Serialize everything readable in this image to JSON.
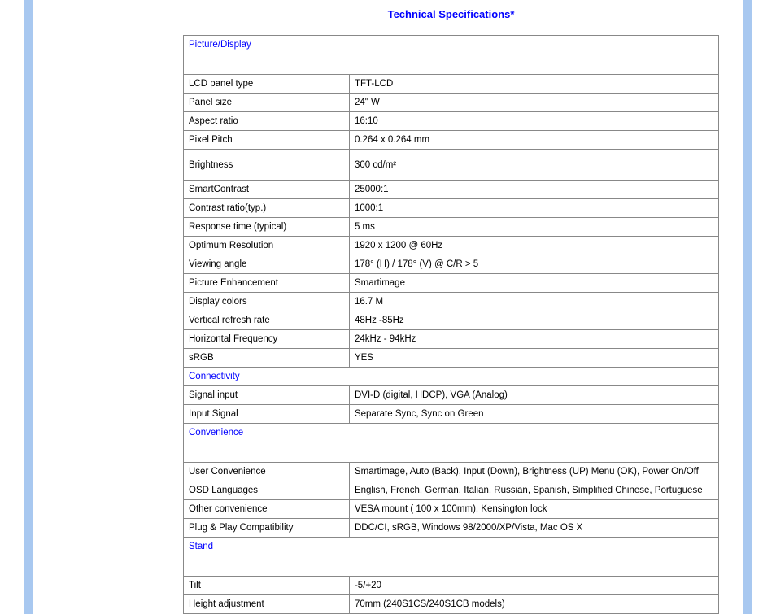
{
  "title": "Technical Specifications*",
  "columns": {
    "label_width_pct": 31,
    "value_width_pct": 69
  },
  "colors": {
    "heading": "#0000ff",
    "border": "#888888",
    "sidebar": "#a8c8f0",
    "text": "#000000",
    "background": "#ffffff"
  },
  "sections": [
    {
      "name": "Picture/Display",
      "tall": true,
      "rows": [
        {
          "label": "LCD panel type",
          "value": "TFT-LCD"
        },
        {
          "label": "Panel size",
          "value": "24\" W"
        },
        {
          "label": "Aspect ratio",
          "value": "16:10"
        },
        {
          "label": "Pixel Pitch",
          "value": "0.264 x 0.264 mm"
        },
        {
          "label": "Brightness",
          "value": "300 cd/m²",
          "tall": true
        },
        {
          "label": "SmartContrast",
          "value": "25000:1"
        },
        {
          "label": "Contrast ratio(typ.)",
          "value": "1000:1"
        },
        {
          "label": "Response time (typical)",
          "value": "5 ms"
        },
        {
          "label": "Optimum Resolution",
          "value": "1920 x 1200 @ 60Hz"
        },
        {
          "label": "Viewing angle",
          "value": "178° (H) / 178° (V) @ C/R > 5"
        },
        {
          "label": "Picture Enhancement",
          "value": "Smartimage"
        },
        {
          "label": "Display colors",
          "value": "16.7 M"
        },
        {
          "label": "Vertical refresh rate",
          "value": "48Hz -85Hz"
        },
        {
          "label": "Horizontal Frequency",
          "value": "24kHz - 94kHz"
        },
        {
          "label": "sRGB",
          "value": "YES"
        }
      ]
    },
    {
      "name": "Connectivity",
      "tall": false,
      "rows": [
        {
          "label": "Signal input",
          "value": "DVI-D (digital, HDCP), VGA (Analog)"
        },
        {
          "label": "Input Signal",
          "value": "Separate Sync, Sync on Green"
        }
      ]
    },
    {
      "name": "Convenience",
      "tall": true,
      "rows": [
        {
          "label": "User Convenience",
          "value": "Smartimage, Auto (Back), Input (Down), Brightness (UP) Menu (OK), Power On/Off"
        },
        {
          "label": "OSD Languages",
          "value": "English, French, German, Italian, Russian, Spanish, Simplified Chinese, Portuguese"
        },
        {
          "label": "Other convenience",
          "value": "VESA mount ( 100 x 100mm), Kensington lock"
        },
        {
          "label": "Plug & Play Compatibility",
          "value": "DDC/CI, sRGB, Windows 98/2000/XP/Vista, Mac OS X"
        }
      ]
    },
    {
      "name": "Stand",
      "tall": true,
      "rows": [
        {
          "label": "Tilt",
          "value": "-5/+20"
        },
        {
          "label": "Height adjustment",
          "value": "70mm (240S1CS/240S1CB models)"
        }
      ]
    }
  ]
}
